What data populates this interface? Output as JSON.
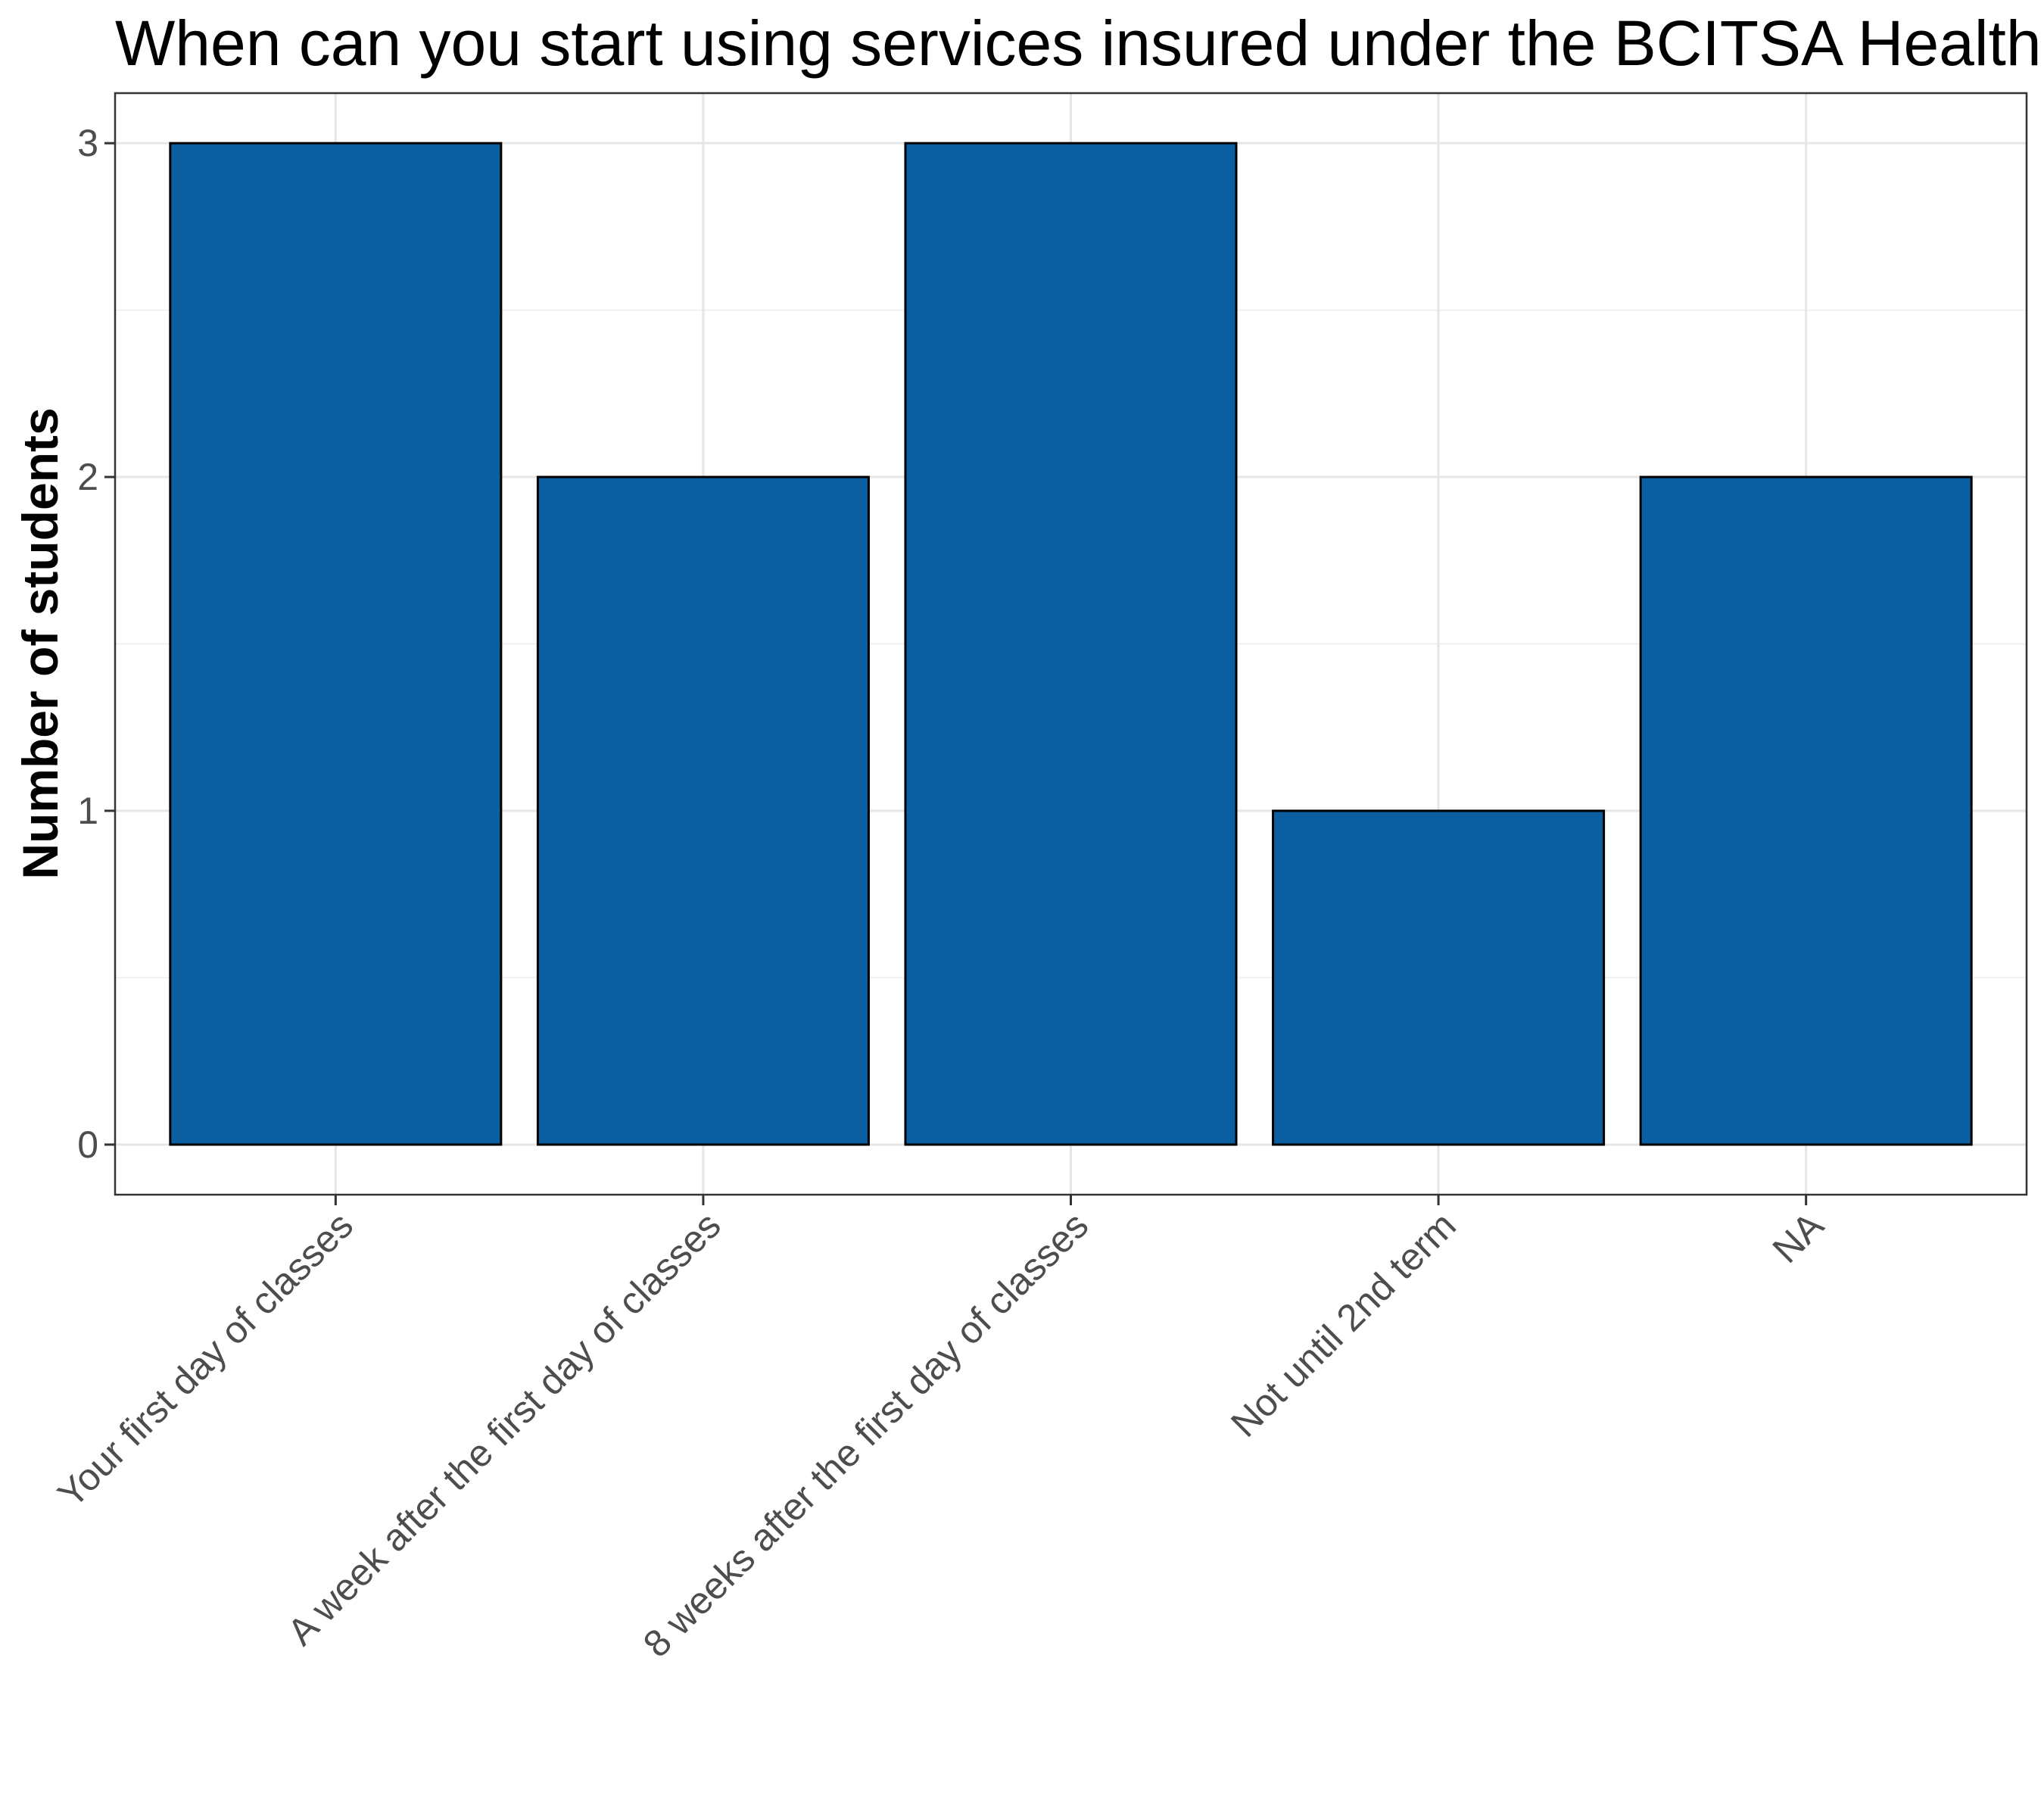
{
  "chart_data": {
    "type": "bar",
    "title": "When can you start using services insured under the BCITSA Health Plan?",
    "xlabel": "",
    "ylabel": "Number of students",
    "categories": [
      "Your first day of classes",
      "A week after the first day of classes",
      "8 weeks after the first day of classes",
      "Not until 2nd term",
      "NA"
    ],
    "values": [
      3,
      2,
      3,
      1,
      2
    ],
    "ylim": [
      -0.15,
      3.15
    ],
    "yticks": [
      0,
      1,
      2,
      3
    ],
    "grid": true,
    "legend": "none",
    "colors": {
      "bar_fill": "#0b5ea0",
      "bar_stroke": "#000000",
      "grid_major": "#e6e6e6",
      "grid_minor": "#f0f0f0",
      "panel_border": "#333333",
      "tick_text": "#4d4d4d"
    }
  }
}
